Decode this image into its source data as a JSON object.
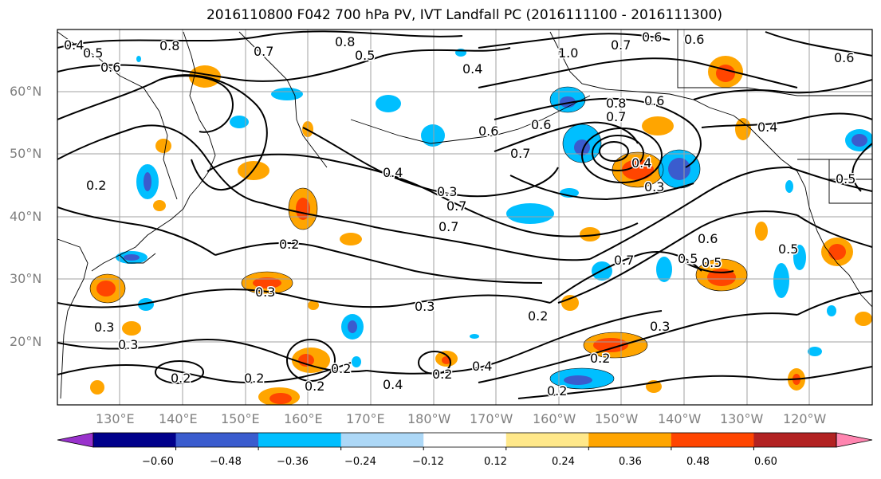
{
  "title": "2016110800 F042 700 hPa PV, IVT Landfall PC (2016111100 - 2016111300)",
  "lat_labels": [
    "60°N",
    "50°N",
    "40°N",
    "30°N",
    "20°N"
  ],
  "lon_labels": [
    "130°E",
    "140°E",
    "150°E",
    "160°E",
    "170°E",
    "180°W",
    "170°W",
    "160°W",
    "150°W",
    "140°W",
    "130°W",
    "120°W"
  ],
  "colorbar": {
    "colors": [
      "#9932cc",
      "#00008b",
      "#3a5cce",
      "#00bfff",
      "#add8f7",
      "#ffffff",
      "#ffe88a",
      "#ffa500",
      "#ff4500",
      "#b22222",
      "#ff85b0"
    ],
    "tick_labels": [
      "−0.60",
      "−0.48",
      "−0.36",
      "−0.24",
      "−0.12",
      "0.12",
      "0.24",
      "0.36",
      "0.48",
      "0.60"
    ]
  },
  "contour_labels": [
    "0.4",
    "0.5",
    "0.6",
    "0.8",
    "0.7",
    "0.5",
    "0.8",
    "1.0",
    "0.7",
    "0.6",
    "0.6",
    "0.4",
    "0.6",
    "0.7",
    "0.8",
    "0.4",
    "0.3",
    "0.6",
    "0.7",
    "0.4",
    "0.6",
    "0.3",
    "0.7",
    "0.5",
    "0.6",
    "0.4",
    "0.5",
    "0.2",
    "0.3",
    "0.3",
    "0.2",
    "0.3",
    "0.2",
    "0.4",
    "0.2",
    "0.3",
    "0.2",
    "0.2",
    "0.2",
    "0.4",
    "0.2",
    "0.2",
    "0.2",
    "0.7",
    "0.3",
    "0.5",
    "0.7",
    "0.5",
    "0.6"
  ]
}
